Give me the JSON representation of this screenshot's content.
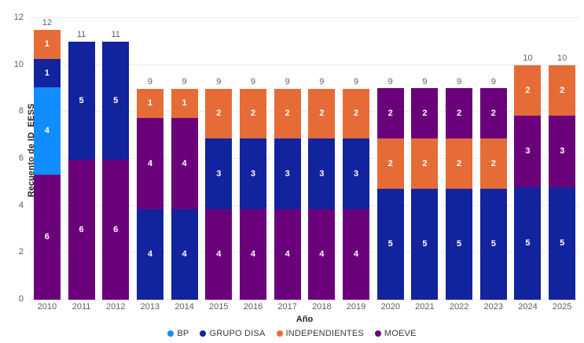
{
  "chart_data": {
    "type": "bar",
    "stacked": true,
    "title": "",
    "xlabel": "Año",
    "ylabel": "Recuento de ID_EESS",
    "ylim": [
      0,
      12
    ],
    "yticks": [
      0,
      2,
      4,
      6,
      8,
      10,
      12
    ],
    "grid": "horizontal-dotted",
    "legend_position": "bottom",
    "legend": [
      "BP",
      "GRUPO DISA",
      "INDEPENDIENTES",
      "MOEVE"
    ],
    "series_colors": {
      "BP": "#118DFF",
      "GRUPO DISA": "#12239E",
      "INDEPENDIENTES": "#E66C37",
      "MOEVE": "#6B007B"
    },
    "categories": [
      "2010",
      "2011",
      "2012",
      "2013",
      "2014",
      "2015",
      "2016",
      "2017",
      "2018",
      "2019",
      "2020",
      "2021",
      "2022",
      "2023",
      "2024",
      "2025"
    ],
    "bars": [
      {
        "category": "2010",
        "total": 12,
        "segments": [
          {
            "series": "MOEVE",
            "value": 6
          },
          {
            "series": "BP",
            "value": 4
          },
          {
            "series": "GRUPO DISA",
            "value": 1
          },
          {
            "series": "INDEPENDIENTES",
            "value": 1
          }
        ]
      },
      {
        "category": "2011",
        "total": 11,
        "segments": [
          {
            "series": "MOEVE",
            "value": 6
          },
          {
            "series": "GRUPO DISA",
            "value": 5
          }
        ]
      },
      {
        "category": "2012",
        "total": 11,
        "segments": [
          {
            "series": "MOEVE",
            "value": 6
          },
          {
            "series": "GRUPO DISA",
            "value": 5
          }
        ]
      },
      {
        "category": "2013",
        "total": 9,
        "segments": [
          {
            "series": "GRUPO DISA",
            "value": 4
          },
          {
            "series": "MOEVE",
            "value": 4
          },
          {
            "series": "INDEPENDIENTES",
            "value": 1
          }
        ]
      },
      {
        "category": "2014",
        "total": 9,
        "segments": [
          {
            "series": "GRUPO DISA",
            "value": 4
          },
          {
            "series": "MOEVE",
            "value": 4
          },
          {
            "series": "INDEPENDIENTES",
            "value": 1
          }
        ]
      },
      {
        "category": "2015",
        "total": 9,
        "segments": [
          {
            "series": "MOEVE",
            "value": 4
          },
          {
            "series": "GRUPO DISA",
            "value": 3
          },
          {
            "series": "INDEPENDIENTES",
            "value": 2
          }
        ]
      },
      {
        "category": "2016",
        "total": 9,
        "segments": [
          {
            "series": "MOEVE",
            "value": 4
          },
          {
            "series": "GRUPO DISA",
            "value": 3
          },
          {
            "series": "INDEPENDIENTES",
            "value": 2
          }
        ]
      },
      {
        "category": "2017",
        "total": 9,
        "segments": [
          {
            "series": "MOEVE",
            "value": 4
          },
          {
            "series": "GRUPO DISA",
            "value": 3
          },
          {
            "series": "INDEPENDIENTES",
            "value": 2
          }
        ]
      },
      {
        "category": "2018",
        "total": 9,
        "segments": [
          {
            "series": "MOEVE",
            "value": 4
          },
          {
            "series": "GRUPO DISA",
            "value": 3
          },
          {
            "series": "INDEPENDIENTES",
            "value": 2
          }
        ]
      },
      {
        "category": "2019",
        "total": 9,
        "segments": [
          {
            "series": "MOEVE",
            "value": 4
          },
          {
            "series": "GRUPO DISA",
            "value": 3
          },
          {
            "series": "INDEPENDIENTES",
            "value": 2
          }
        ]
      },
      {
        "category": "2020",
        "total": 9,
        "segments": [
          {
            "series": "GRUPO DISA",
            "value": 5
          },
          {
            "series": "INDEPENDIENTES",
            "value": 2
          },
          {
            "series": "MOEVE",
            "value": 2
          }
        ]
      },
      {
        "category": "2021",
        "total": 9,
        "segments": [
          {
            "series": "GRUPO DISA",
            "value": 5
          },
          {
            "series": "INDEPENDIENTES",
            "value": 2
          },
          {
            "series": "MOEVE",
            "value": 2
          }
        ]
      },
      {
        "category": "2022",
        "total": 9,
        "segments": [
          {
            "series": "GRUPO DISA",
            "value": 5
          },
          {
            "series": "INDEPENDIENTES",
            "value": 2
          },
          {
            "series": "MOEVE",
            "value": 2
          }
        ]
      },
      {
        "category": "2023",
        "total": 9,
        "segments": [
          {
            "series": "GRUPO DISA",
            "value": 5
          },
          {
            "series": "INDEPENDIENTES",
            "value": 2
          },
          {
            "series": "MOEVE",
            "value": 2
          }
        ]
      },
      {
        "category": "2024",
        "total": 10,
        "segments": [
          {
            "series": "GRUPO DISA",
            "value": 5
          },
          {
            "series": "MOEVE",
            "value": 3
          },
          {
            "series": "INDEPENDIENTES",
            "value": 2
          }
        ]
      },
      {
        "category": "2025",
        "total": 10,
        "segments": [
          {
            "series": "GRUPO DISA",
            "value": 5
          },
          {
            "series": "MOEVE",
            "value": 3
          },
          {
            "series": "INDEPENDIENTES",
            "value": 2
          }
        ]
      }
    ],
    "colors": {
      "axis_text": "#605E5C",
      "axis_title": "#252423",
      "total_label": "#605E5C",
      "segment_label": "#FFFFFF",
      "gridline": "#D9D9D9",
      "background": "#FFFFFF"
    }
  }
}
